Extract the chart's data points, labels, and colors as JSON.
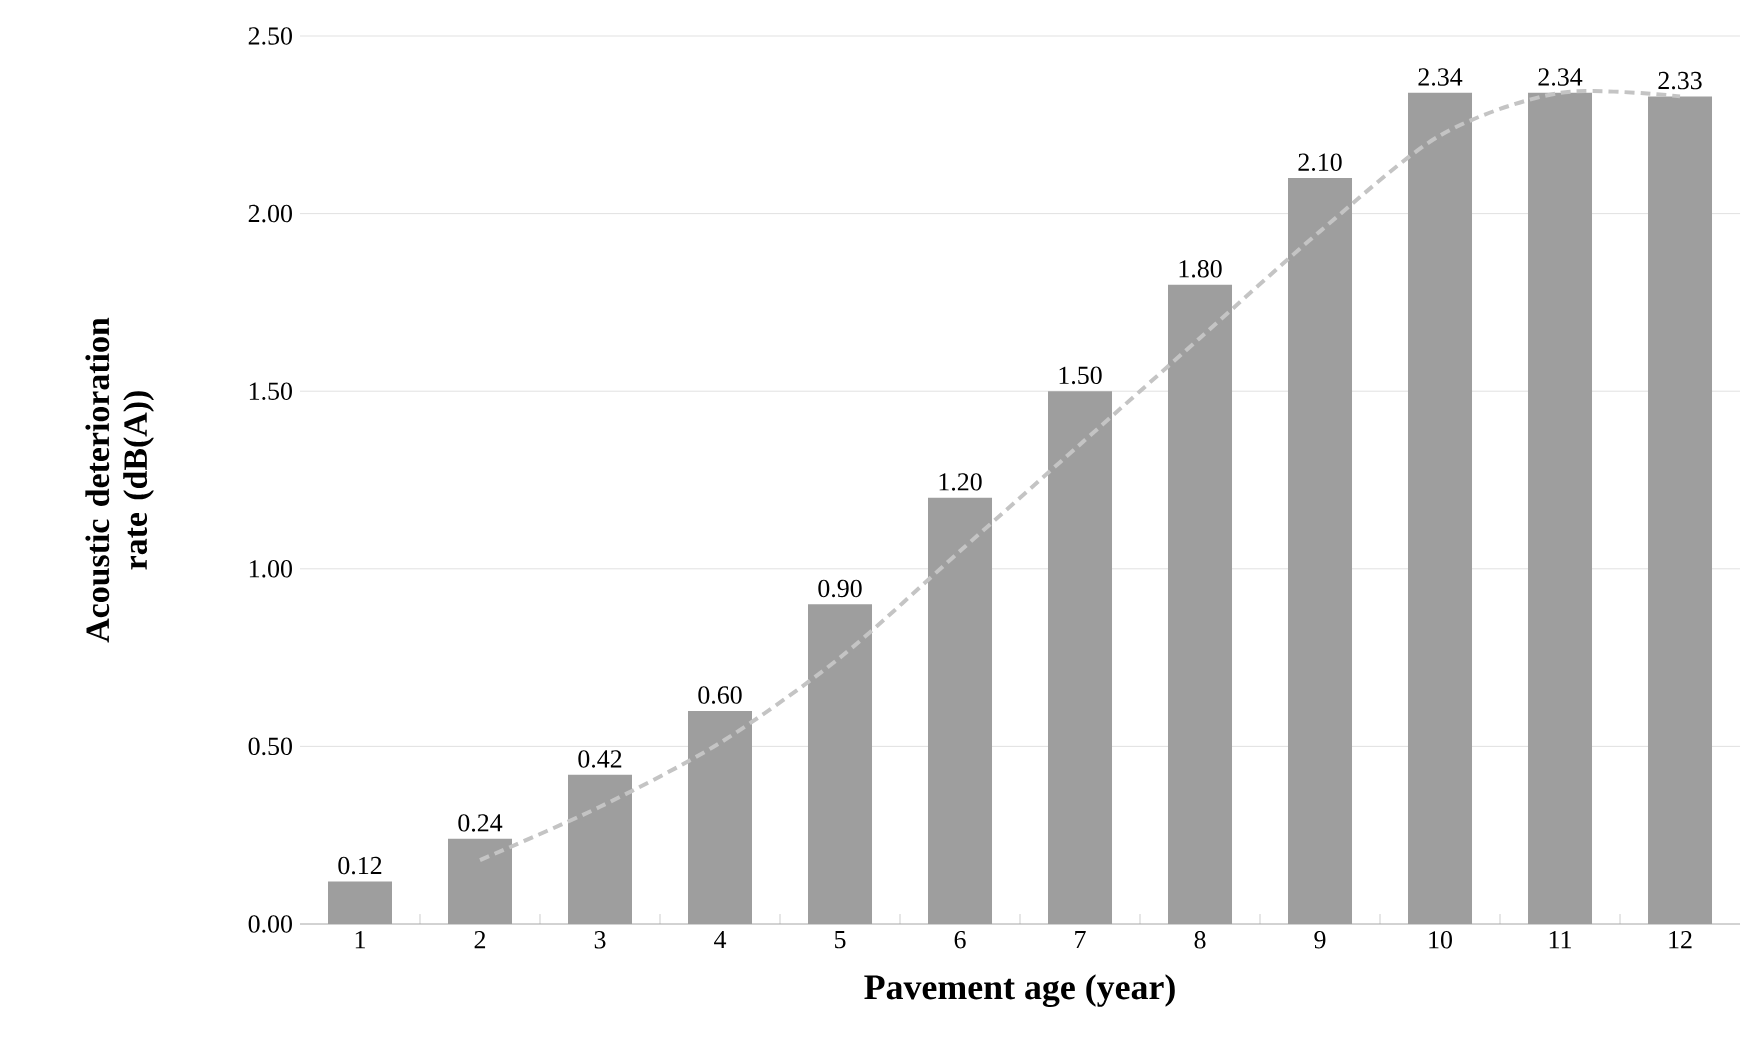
{
  "chart_data": {
    "type": "bar",
    "xlabel": "Pavement age (year)",
    "ylabel": "Acoustic deterioration rate (dB(A))",
    "x": [
      1,
      2,
      3,
      4,
      5,
      6,
      7,
      8,
      9,
      10,
      11,
      12
    ],
    "series": [
      {
        "color": "#9e9e9e",
        "values": [
          0.12,
          0.24,
          0.42,
          0.6,
          0.9,
          1.2,
          1.5,
          1.8,
          2.1,
          2.34,
          2.34,
          2.33
        ],
        "value_labels": [
          "0.12",
          "0.24",
          "0.42",
          "0.60",
          "0.90",
          "1.20",
          "1.50",
          "1.80",
          "2.10",
          "2.34",
          "2.34",
          "2.33"
        ]
      },
      {
        "type": "line",
        "color": "#c4c4c4",
        "line_style": "dashed",
        "marker": "none",
        "x": [
          2,
          3,
          4,
          5,
          6,
          7,
          8,
          9,
          10,
          11,
          12
        ],
        "values": [
          0.18,
          0.33,
          0.51,
          0.75,
          1.05,
          1.35,
          1.65,
          1.95,
          2.22,
          2.34,
          2.33
        ]
      }
    ],
    "xlim": [
      0.5,
      12.5
    ],
    "xticks": [
      1,
      2,
      3,
      4,
      5,
      6,
      7,
      8,
      9,
      10,
      11,
      12
    ],
    "ylim": [
      0,
      2.5
    ],
    "yticks": [
      {
        "value": 0,
        "label": "0.00"
      },
      {
        "value": 0.5,
        "label": "0.50"
      },
      {
        "value": 1,
        "label": "1.00"
      },
      {
        "value": 1.5,
        "label": "1.50"
      },
      {
        "value": 2,
        "label": "2.00"
      },
      {
        "value": 2.5,
        "label": "2.50"
      }
    ],
    "grid": "y"
  }
}
